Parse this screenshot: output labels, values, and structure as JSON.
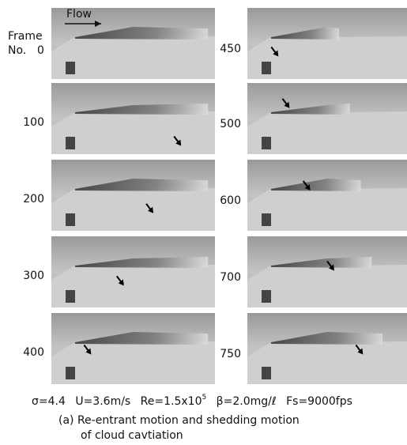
{
  "flow_label": "Flow",
  "frame_heading": {
    "line1": "Frame",
    "line2": "No."
  },
  "left_frames": [
    "0",
    "100",
    "200",
    "300",
    "400"
  ],
  "right_frames": [
    "450",
    "500",
    "600",
    "700",
    "750"
  ],
  "conditions": {
    "sigma": "σ=4.4",
    "velocity": "U=3.6m/s",
    "reynolds": "Re=1.5x10",
    "reynolds_exponent": "5",
    "beta": "β=2.0mg/ℓ",
    "fps": "Fs=9000fps"
  },
  "caption": [
    "(a) Re-entrant motion and shedding motion",
    "of cloud cavtiation"
  ]
}
